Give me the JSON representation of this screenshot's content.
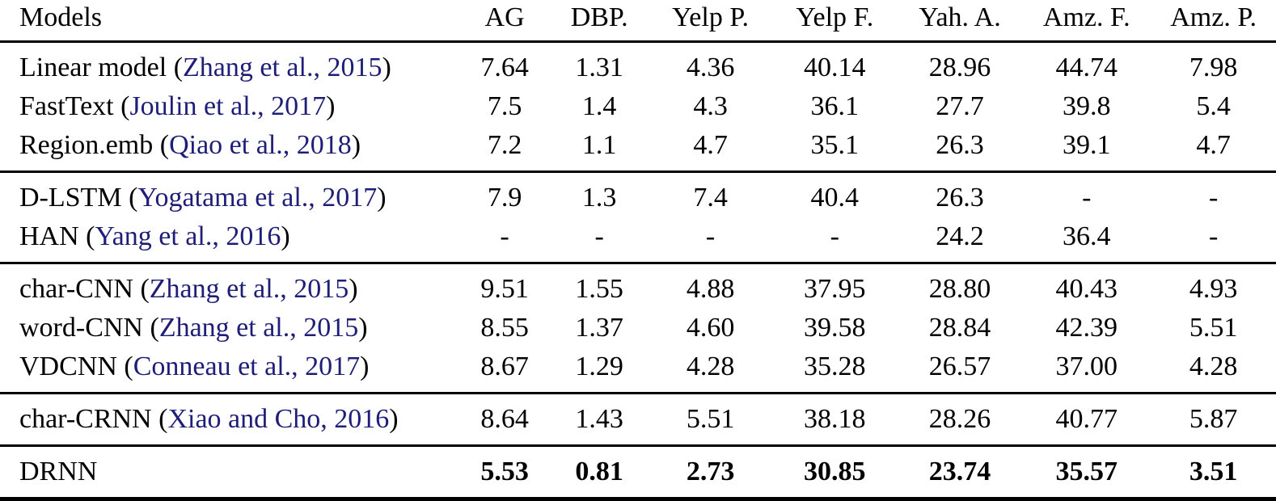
{
  "accent_colors": {
    "citation_link": "#1e1e78",
    "text": "#000000",
    "rule": "#000000"
  },
  "table": {
    "columns": [
      "Models",
      "AG",
      "DBP.",
      "Yelp P.",
      "Yelp F.",
      "Yah. A.",
      "Amz. F.",
      "Amz. P."
    ],
    "groups": [
      {
        "rows": [
          {
            "model": "Linear model",
            "citation": "Zhang et al., 2015",
            "values": [
              "7.64",
              "1.31",
              "4.36",
              "40.14",
              "28.96",
              "44.74",
              "7.98"
            ],
            "bold": false
          },
          {
            "model": "FastText",
            "citation": "Joulin et al., 2017",
            "values": [
              "7.5",
              "1.4",
              "4.3",
              "36.1",
              "27.7",
              "39.8",
              "5.4"
            ],
            "bold": false
          },
          {
            "model": "Region.emb",
            "citation": "Qiao et al., 2018",
            "values": [
              "7.2",
              "1.1",
              "4.7",
              "35.1",
              "26.3",
              "39.1",
              "4.7"
            ],
            "bold": false
          }
        ]
      },
      {
        "rows": [
          {
            "model": "D-LSTM",
            "citation": "Yogatama et al., 2017",
            "values": [
              "7.9",
              "1.3",
              "7.4",
              "40.4",
              "26.3",
              "-",
              "-"
            ],
            "bold": false
          },
          {
            "model": "HAN",
            "citation": "Yang et al., 2016",
            "values": [
              "-",
              "-",
              "-",
              "-",
              "24.2",
              "36.4",
              "-"
            ],
            "bold": false
          }
        ]
      },
      {
        "rows": [
          {
            "model": "char-CNN",
            "citation": "Zhang et al., 2015",
            "values": [
              "9.51",
              "1.55",
              "4.88",
              "37.95",
              "28.80",
              "40.43",
              "4.93"
            ],
            "bold": false
          },
          {
            "model": "word-CNN",
            "citation": "Zhang et al., 2015",
            "values": [
              "8.55",
              "1.37",
              "4.60",
              "39.58",
              "28.84",
              "42.39",
              "5.51"
            ],
            "bold": false
          },
          {
            "model": "VDCNN",
            "citation": "Conneau et al., 2017",
            "values": [
              "8.67",
              "1.29",
              "4.28",
              "35.28",
              "26.57",
              "37.00",
              "4.28"
            ],
            "bold": false
          }
        ]
      },
      {
        "rows": [
          {
            "model": "char-CRNN",
            "citation": "Xiao and Cho, 2016",
            "values": [
              "8.64",
              "1.43",
              "5.51",
              "38.18",
              "28.26",
              "40.77",
              "5.87"
            ],
            "bold": false
          }
        ]
      },
      {
        "rows": [
          {
            "model": "DRNN",
            "citation": null,
            "values": [
              "5.53",
              "0.81",
              "2.73",
              "30.85",
              "23.74",
              "35.57",
              "3.51"
            ],
            "bold": true
          }
        ]
      }
    ]
  }
}
